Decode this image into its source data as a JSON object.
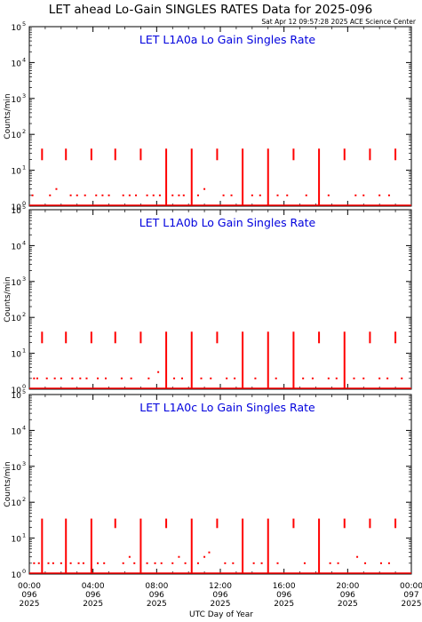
{
  "page": {
    "title": "LET ahead Lo-Gain SINGLES RATES Data for 2025-096",
    "timestamp": "Sat Apr 12 09:57:28 2025 ACE Science Center",
    "xlabel": "UTC Day of Year"
  },
  "colors": {
    "data": "#ff0000",
    "panel_title": "#0000dd",
    "axes": "#000000"
  },
  "chart_data": [
    {
      "type": "line",
      "title": "LET L1A0a Lo Gain Singles Rate",
      "ylabel": "Counts/min",
      "yscale": "log",
      "ylim": [
        1,
        100000
      ],
      "ytick_bases": [
        "10",
        "10",
        "10",
        "10",
        "10",
        "10"
      ],
      "ytick_exponents": [
        "0",
        "1",
        "2",
        "3",
        "4",
        "5"
      ],
      "xlim": [
        0,
        24
      ],
      "baseline": 1,
      "spikes": [
        {
          "x": 0.8,
          "top": 40,
          "bottom": 18
        },
        {
          "x": 2.3,
          "top": 40,
          "bottom": 18
        },
        {
          "x": 3.9,
          "top": 40,
          "bottom": 18
        },
        {
          "x": 5.4,
          "top": 40,
          "bottom": 18
        },
        {
          "x": 7.0,
          "top": 40,
          "bottom": 18
        },
        {
          "x": 8.6,
          "top": 40,
          "bottom": 1
        },
        {
          "x": 10.2,
          "top": 40,
          "bottom": 1
        },
        {
          "x": 11.8,
          "top": 40,
          "bottom": 18
        },
        {
          "x": 13.4,
          "top": 40,
          "bottom": 1
        },
        {
          "x": 15.0,
          "top": 40,
          "bottom": 1
        },
        {
          "x": 16.6,
          "top": 40,
          "bottom": 18
        },
        {
          "x": 18.2,
          "top": 40,
          "bottom": 1
        },
        {
          "x": 19.8,
          "top": 40,
          "bottom": 18
        },
        {
          "x": 21.4,
          "top": 40,
          "bottom": 18
        },
        {
          "x": 23.0,
          "top": 40,
          "bottom": 18
        }
      ],
      "sparse": [
        {
          "x": 0.2,
          "y": 2
        },
        {
          "x": 1.3,
          "y": 2
        },
        {
          "x": 1.7,
          "y": 3
        },
        {
          "x": 2.6,
          "y": 2
        },
        {
          "x": 3.0,
          "y": 2
        },
        {
          "x": 3.5,
          "y": 2
        },
        {
          "x": 4.2,
          "y": 2
        },
        {
          "x": 4.6,
          "y": 2
        },
        {
          "x": 5.0,
          "y": 2
        },
        {
          "x": 5.9,
          "y": 2
        },
        {
          "x": 6.3,
          "y": 2
        },
        {
          "x": 6.7,
          "y": 2
        },
        {
          "x": 7.4,
          "y": 2
        },
        {
          "x": 7.8,
          "y": 2
        },
        {
          "x": 8.2,
          "y": 2
        },
        {
          "x": 9.0,
          "y": 2
        },
        {
          "x": 9.4,
          "y": 2
        },
        {
          "x": 9.7,
          "y": 2
        },
        {
          "x": 10.6,
          "y": 2
        },
        {
          "x": 11.0,
          "y": 3
        },
        {
          "x": 12.2,
          "y": 2
        },
        {
          "x": 12.7,
          "y": 2
        },
        {
          "x": 14.0,
          "y": 2
        },
        {
          "x": 14.5,
          "y": 2
        },
        {
          "x": 15.6,
          "y": 2
        },
        {
          "x": 16.2,
          "y": 2
        },
        {
          "x": 17.4,
          "y": 2
        },
        {
          "x": 18.8,
          "y": 2
        },
        {
          "x": 20.5,
          "y": 2
        },
        {
          "x": 21.0,
          "y": 2
        },
        {
          "x": 22.0,
          "y": 2
        },
        {
          "x": 22.6,
          "y": 2
        }
      ]
    },
    {
      "type": "line",
      "title": "LET L1A0b Lo Gain Singles Rate",
      "ylabel": "Counts/min",
      "yscale": "log",
      "ylim": [
        1,
        100000
      ],
      "ytick_bases": [
        "10",
        "10",
        "10",
        "10",
        "10",
        "10"
      ],
      "ytick_exponents": [
        "0",
        "1",
        "2",
        "3",
        "4",
        "5"
      ],
      "xlim": [
        0,
        24
      ],
      "baseline": 1,
      "spikes": [
        {
          "x": 0.8,
          "top": 40,
          "bottom": 18
        },
        {
          "x": 2.3,
          "top": 40,
          "bottom": 18
        },
        {
          "x": 3.9,
          "top": 40,
          "bottom": 18
        },
        {
          "x": 5.4,
          "top": 40,
          "bottom": 18
        },
        {
          "x": 7.0,
          "top": 40,
          "bottom": 18
        },
        {
          "x": 8.6,
          "top": 40,
          "bottom": 1
        },
        {
          "x": 10.2,
          "top": 40,
          "bottom": 1
        },
        {
          "x": 11.8,
          "top": 40,
          "bottom": 18
        },
        {
          "x": 13.4,
          "top": 40,
          "bottom": 1
        },
        {
          "x": 15.0,
          "top": 40,
          "bottom": 1
        },
        {
          "x": 16.6,
          "top": 40,
          "bottom": 1
        },
        {
          "x": 18.2,
          "top": 40,
          "bottom": 18
        },
        {
          "x": 19.8,
          "top": 40,
          "bottom": 1
        },
        {
          "x": 21.4,
          "top": 40,
          "bottom": 18
        },
        {
          "x": 23.0,
          "top": 40,
          "bottom": 18
        }
      ],
      "sparse": [
        {
          "x": 0.3,
          "y": 2
        },
        {
          "x": 0.5,
          "y": 2
        },
        {
          "x": 1.1,
          "y": 2
        },
        {
          "x": 1.6,
          "y": 2
        },
        {
          "x": 2.0,
          "y": 2
        },
        {
          "x": 2.7,
          "y": 2
        },
        {
          "x": 3.2,
          "y": 2
        },
        {
          "x": 3.6,
          "y": 2
        },
        {
          "x": 4.3,
          "y": 2
        },
        {
          "x": 4.8,
          "y": 2
        },
        {
          "x": 5.8,
          "y": 2
        },
        {
          "x": 6.4,
          "y": 2
        },
        {
          "x": 7.5,
          "y": 2
        },
        {
          "x": 8.1,
          "y": 3
        },
        {
          "x": 9.1,
          "y": 2
        },
        {
          "x": 9.6,
          "y": 2
        },
        {
          "x": 10.8,
          "y": 2
        },
        {
          "x": 11.4,
          "y": 2
        },
        {
          "x": 12.4,
          "y": 2
        },
        {
          "x": 12.9,
          "y": 2
        },
        {
          "x": 14.2,
          "y": 2
        },
        {
          "x": 15.5,
          "y": 2
        },
        {
          "x": 17.2,
          "y": 2
        },
        {
          "x": 17.8,
          "y": 2
        },
        {
          "x": 18.8,
          "y": 2
        },
        {
          "x": 19.3,
          "y": 2
        },
        {
          "x": 20.4,
          "y": 2
        },
        {
          "x": 21.0,
          "y": 2
        },
        {
          "x": 22.0,
          "y": 2
        },
        {
          "x": 22.5,
          "y": 2
        },
        {
          "x": 23.4,
          "y": 2
        }
      ]
    },
    {
      "type": "line",
      "title": "LET L1A0c Lo Gain Singles Rate",
      "ylabel": "Counts/min",
      "yscale": "log",
      "ylim": [
        1,
        100000
      ],
      "ytick_bases": [
        "10",
        "10",
        "10",
        "10",
        "10",
        "10"
      ],
      "ytick_exponents": [
        "0",
        "1",
        "2",
        "3",
        "4",
        "5"
      ],
      "xlim": [
        0,
        24
      ],
      "baseline": 1,
      "spikes": [
        {
          "x": 0.8,
          "top": 35,
          "bottom": 1
        },
        {
          "x": 2.3,
          "top": 35,
          "bottom": 1
        },
        {
          "x": 3.9,
          "top": 35,
          "bottom": 1
        },
        {
          "x": 5.4,
          "top": 35,
          "bottom": 18
        },
        {
          "x": 7.0,
          "top": 35,
          "bottom": 1
        },
        {
          "x": 8.6,
          "top": 35,
          "bottom": 18
        },
        {
          "x": 10.2,
          "top": 35,
          "bottom": 1
        },
        {
          "x": 11.8,
          "top": 35,
          "bottom": 18
        },
        {
          "x": 13.4,
          "top": 35,
          "bottom": 1
        },
        {
          "x": 15.0,
          "top": 35,
          "bottom": 1
        },
        {
          "x": 16.6,
          "top": 35,
          "bottom": 18
        },
        {
          "x": 18.2,
          "top": 35,
          "bottom": 1
        },
        {
          "x": 19.8,
          "top": 35,
          "bottom": 18
        },
        {
          "x": 21.4,
          "top": 35,
          "bottom": 18
        },
        {
          "x": 23.0,
          "top": 35,
          "bottom": 18
        }
      ],
      "sparse": [
        {
          "x": 0.3,
          "y": 2
        },
        {
          "x": 0.6,
          "y": 2
        },
        {
          "x": 1.2,
          "y": 2
        },
        {
          "x": 1.5,
          "y": 2
        },
        {
          "x": 2.0,
          "y": 2
        },
        {
          "x": 2.6,
          "y": 2
        },
        {
          "x": 3.1,
          "y": 2
        },
        {
          "x": 3.4,
          "y": 2
        },
        {
          "x": 4.3,
          "y": 2
        },
        {
          "x": 4.7,
          "y": 2
        },
        {
          "x": 5.9,
          "y": 2
        },
        {
          "x": 6.3,
          "y": 3
        },
        {
          "x": 6.6,
          "y": 2
        },
        {
          "x": 7.4,
          "y": 2
        },
        {
          "x": 7.9,
          "y": 2
        },
        {
          "x": 8.3,
          "y": 2
        },
        {
          "x": 9.0,
          "y": 2
        },
        {
          "x": 9.4,
          "y": 3
        },
        {
          "x": 9.8,
          "y": 2
        },
        {
          "x": 10.6,
          "y": 2
        },
        {
          "x": 11.0,
          "y": 3
        },
        {
          "x": 11.3,
          "y": 4
        },
        {
          "x": 12.3,
          "y": 2
        },
        {
          "x": 12.8,
          "y": 2
        },
        {
          "x": 14.1,
          "y": 2
        },
        {
          "x": 14.6,
          "y": 2
        },
        {
          "x": 15.6,
          "y": 2
        },
        {
          "x": 17.3,
          "y": 2
        },
        {
          "x": 18.9,
          "y": 2
        },
        {
          "x": 19.4,
          "y": 2
        },
        {
          "x": 20.6,
          "y": 3
        },
        {
          "x": 21.1,
          "y": 2
        },
        {
          "x": 22.1,
          "y": 2
        },
        {
          "x": 22.6,
          "y": 2
        }
      ]
    }
  ],
  "xaxis": {
    "tick_hours": [
      0,
      4,
      8,
      12,
      16,
      20,
      24
    ],
    "tick_labels": [
      [
        "00:00",
        "096",
        "2025"
      ],
      [
        "04:00",
        "096",
        "2025"
      ],
      [
        "08:00",
        "096",
        "2025"
      ],
      [
        "12:00",
        "096",
        "2025"
      ],
      [
        "16:00",
        "096",
        "2025"
      ],
      [
        "20:00",
        "096",
        "2025"
      ],
      [
        "00:00",
        "097",
        "2025"
      ]
    ]
  }
}
